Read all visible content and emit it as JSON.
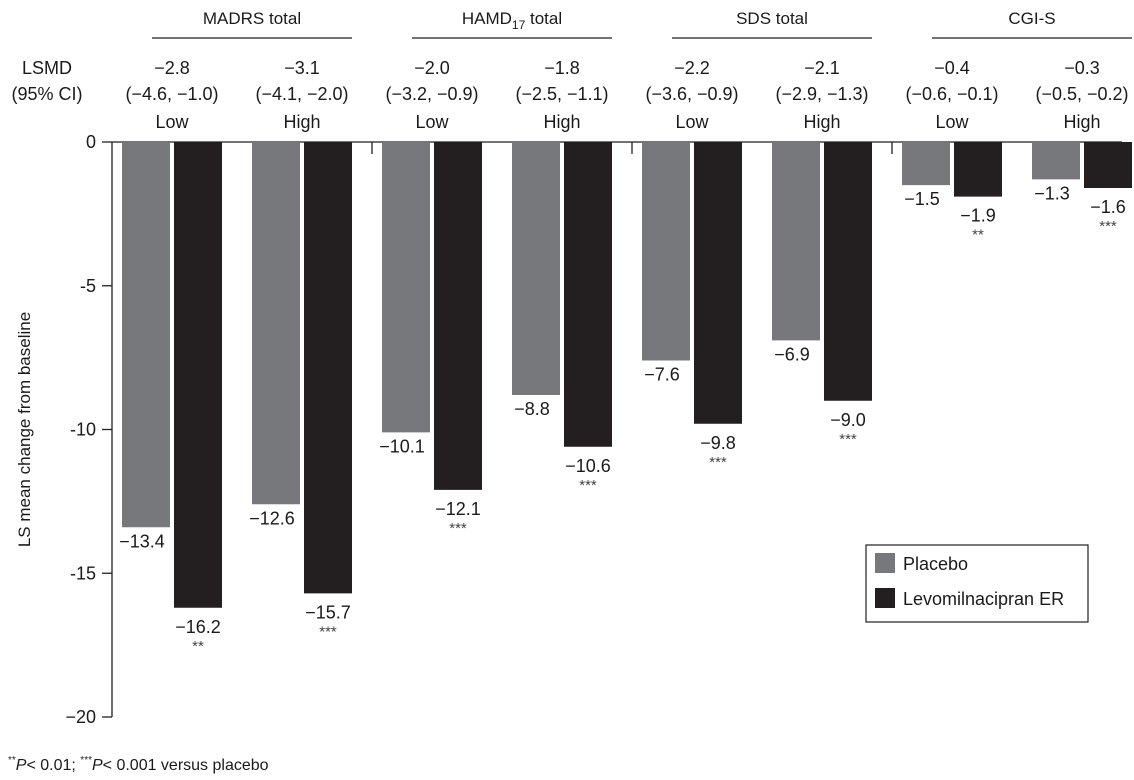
{
  "chart_data": {
    "type": "bar",
    "ylabel": "LS mean change from baseline",
    "ylim": [
      -20,
      0
    ],
    "yticks": [
      0,
      -5,
      -10,
      -15,
      -20
    ],
    "ytick_labels": [
      "0",
      "-5",
      "-10",
      "-15",
      "−20"
    ],
    "row_header": [
      "LSMD",
      "(95% CI)"
    ],
    "groups": [
      {
        "label": "MADRS total",
        "subgroups": [
          {
            "label": "Low",
            "lsmd": "−2.8",
            "ci": "(−4.6, −1.0)",
            "placebo": -13.4,
            "placebo_label": "−13.4",
            "drug": -16.2,
            "drug_label": "−16.2",
            "sig": "**"
          },
          {
            "label": "High",
            "lsmd": "−3.1",
            "ci": "(−4.1, −2.0)",
            "placebo": -12.6,
            "placebo_label": "−12.6",
            "drug": -15.7,
            "drug_label": "−15.7",
            "sig": "***"
          }
        ]
      },
      {
        "label": "HAMD",
        "label_sub": "17",
        "label_suffix": " total",
        "subgroups": [
          {
            "label": "Low",
            "lsmd": "−2.0",
            "ci": "(−3.2, −0.9)",
            "placebo": -10.1,
            "placebo_label": "−10.1",
            "drug": -12.1,
            "drug_label": "−12.1",
            "sig": "***"
          },
          {
            "label": "High",
            "lsmd": "−1.8",
            "ci": "(−2.5, −1.1)",
            "placebo": -8.8,
            "placebo_label": "−8.8",
            "drug": -10.6,
            "drug_label": "−10.6",
            "sig": "***"
          }
        ]
      },
      {
        "label": "SDS total",
        "subgroups": [
          {
            "label": "Low",
            "lsmd": "−2.2",
            "ci": "(−3.6, −0.9)",
            "placebo": -7.6,
            "placebo_label": "−7.6",
            "drug": -9.8,
            "drug_label": "−9.8",
            "sig": "***"
          },
          {
            "label": "High",
            "lsmd": "−2.1",
            "ci": "(−2.9, −1.3)",
            "placebo": -6.9,
            "placebo_label": "−6.9",
            "drug": -9.0,
            "drug_label": "−9.0",
            "sig": "***"
          }
        ]
      },
      {
        "label": "CGI-S",
        "subgroups": [
          {
            "label": "Low",
            "lsmd": "−0.4",
            "ci": "(−0.6, −0.1)",
            "placebo": -1.5,
            "placebo_label": "−1.5",
            "drug": -1.9,
            "drug_label": "−1.9",
            "sig": "**"
          },
          {
            "label": "High",
            "lsmd": "−0.3",
            "ci": "(−0.5, −0.2)",
            "placebo": -1.3,
            "placebo_label": "−1.3",
            "drug": -1.6,
            "drug_label": "−1.6",
            "sig": "***"
          }
        ]
      }
    ],
    "series": [
      {
        "name": "Placebo",
        "color": "#77787b"
      },
      {
        "name": "Levomilnacipran ER",
        "color": "#231f20"
      }
    ],
    "legend_position": "lower-right",
    "footnote": {
      "sig2": "**",
      "p1": "P",
      "t1": "< 0.01; ",
      "sig3": "***",
      "p2": "P",
      "t2": "< 0.001 versus placebo"
    }
  }
}
